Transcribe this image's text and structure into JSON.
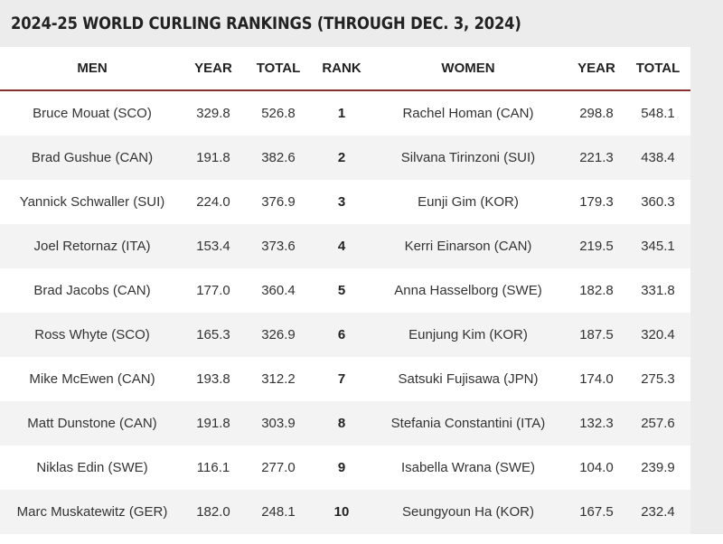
{
  "title": "2024-25 WORLD CURLING RANKINGS (THROUGH DEC. 3, 2024)",
  "headers": {
    "men": "MEN",
    "men_year": "YEAR",
    "men_total": "TOTAL",
    "rank": "RANK",
    "women": "WOMEN",
    "women_year": "YEAR",
    "women_total": "TOTAL"
  },
  "rows": [
    {
      "men": "Bruce Mouat (SCO)",
      "men_year": "329.8",
      "men_total": "526.8",
      "rank": "1",
      "women": "Rachel Homan (CAN)",
      "women_year": "298.8",
      "women_total": "548.1"
    },
    {
      "men": "Brad Gushue (CAN)",
      "men_year": "191.8",
      "men_total": "382.6",
      "rank": "2",
      "women": "Silvana Tirinzoni (SUI)",
      "women_year": "221.3",
      "women_total": "438.4"
    },
    {
      "men": "Yannick Schwaller (SUI)",
      "men_year": "224.0",
      "men_total": "376.9",
      "rank": "3",
      "women": "Eunji Gim (KOR)",
      "women_year": "179.3",
      "women_total": "360.3"
    },
    {
      "men": "Joel Retornaz (ITA)",
      "men_year": "153.4",
      "men_total": "373.6",
      "rank": "4",
      "women": "Kerri Einarson (CAN)",
      "women_year": "219.5",
      "women_total": "345.1"
    },
    {
      "men": "Brad Jacobs (CAN)",
      "men_year": "177.0",
      "men_total": "360.4",
      "rank": "5",
      "women": "Anna Hasselborg (SWE)",
      "women_year": "182.8",
      "women_total": "331.8"
    },
    {
      "men": "Ross Whyte (SCO)",
      "men_year": "165.3",
      "men_total": "326.9",
      "rank": "6",
      "women": "Eunjung Kim (KOR)",
      "women_year": "187.5",
      "women_total": "320.4"
    },
    {
      "men": "Mike McEwen (CAN)",
      "men_year": "193.8",
      "men_total": "312.2",
      "rank": "7",
      "women": "Satsuki Fujisawa (JPN)",
      "women_year": "174.0",
      "women_total": "275.3"
    },
    {
      "men": "Matt Dunstone (CAN)",
      "men_year": "191.8",
      "men_total": "303.9",
      "rank": "8",
      "women": "Stefania Constantini (ITA)",
      "women_year": "132.3",
      "women_total": "257.6"
    },
    {
      "men": "Niklas Edin (SWE)",
      "men_year": "116.1",
      "men_total": "277.0",
      "rank": "9",
      "women": "Isabella Wrana (SWE)",
      "women_year": "104.0",
      "women_total": "239.9"
    },
    {
      "men": "Marc Muskatewitz (GER)",
      "men_year": "182.0",
      "men_total": "248.1",
      "rank": "10",
      "women": "Seungyoun Ha (KOR)",
      "women_year": "167.5",
      "women_total": "232.4"
    }
  ]
}
